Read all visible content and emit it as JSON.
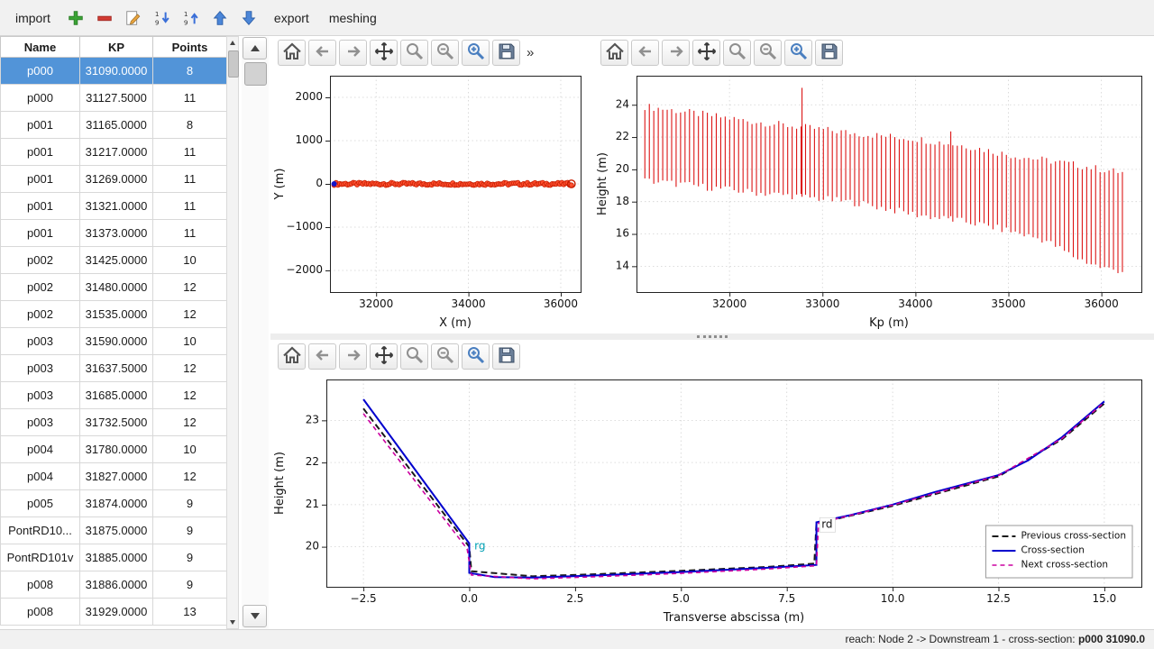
{
  "toolbar": {
    "import_label": "import",
    "export_label": "export",
    "meshing_label": "meshing",
    "icons": [
      "add",
      "remove",
      "edit",
      "sort-descending",
      "sort-ascending",
      "move-up",
      "move-down"
    ]
  },
  "table": {
    "columns": [
      "Name",
      "KP",
      "Points"
    ],
    "selected_row": 0,
    "rows": [
      [
        "p000",
        "31090.0000",
        "8"
      ],
      [
        "p000",
        "31127.5000",
        "11"
      ],
      [
        "p001",
        "31165.0000",
        "8"
      ],
      [
        "p001",
        "31217.0000",
        "11"
      ],
      [
        "p001",
        "31269.0000",
        "11"
      ],
      [
        "p001",
        "31321.0000",
        "11"
      ],
      [
        "p001",
        "31373.0000",
        "11"
      ],
      [
        "p002",
        "31425.0000",
        "10"
      ],
      [
        "p002",
        "31480.0000",
        "12"
      ],
      [
        "p002",
        "31535.0000",
        "12"
      ],
      [
        "p003",
        "31590.0000",
        "10"
      ],
      [
        "p003",
        "31637.5000",
        "12"
      ],
      [
        "p003",
        "31685.0000",
        "12"
      ],
      [
        "p003",
        "31732.5000",
        "12"
      ],
      [
        "p004",
        "31780.0000",
        "10"
      ],
      [
        "p004",
        "31827.0000",
        "12"
      ],
      [
        "p005",
        "31874.0000",
        "9"
      ],
      [
        "PontRD10...",
        "31875.0000",
        "9"
      ],
      [
        "PontRD101v",
        "31885.0000",
        "9"
      ],
      [
        "p008",
        "31886.0000",
        "9"
      ],
      [
        "p008",
        "31929.0000",
        "13"
      ]
    ]
  },
  "plot_toolbars": {
    "buttons": [
      "home",
      "back",
      "forward",
      "pan",
      "zoom",
      "zoom-out",
      "zoom-in",
      "save"
    ],
    "overflow": "»"
  },
  "statusbar": {
    "reach_text": "reach: Node 2 -> Downstream 1 - cross-section: ",
    "cross_section": "p000 31090.0"
  },
  "chart_data": [
    {
      "id": "chart1",
      "type": "scatter",
      "title": "",
      "xlabel": "X (m)",
      "ylabel": "Y (m)",
      "xlim": [
        31000,
        36430
      ],
      "ylim": [
        -2500,
        2500
      ],
      "xticks": [
        32000,
        34000,
        36000
      ],
      "xtick_labels": [
        "32000",
        "34000",
        "36000"
      ],
      "yticks": [
        -2000,
        -1000,
        0,
        1000,
        2000
      ],
      "ytick_labels": [
        "−2000",
        "−1000",
        "0",
        "1000",
        "2000"
      ],
      "grid": true,
      "scatter": {
        "x_start": 31090,
        "x_end": 36230,
        "count": 125,
        "y": 0,
        "spread": 60,
        "color": "#ff5030",
        "edge": "#c81e00"
      },
      "start_marker": {
        "x": 31090,
        "y": 0,
        "color": "#1414c8"
      },
      "end_marker": {
        "x": 36230,
        "y": 0,
        "color": "#c81e00"
      }
    },
    {
      "id": "chart2",
      "type": "vlines",
      "title": "",
      "xlabel": "Kp (m)",
      "ylabel": "Height (m)",
      "xlim": [
        31000,
        36430
      ],
      "ylim": [
        12.4,
        25.8
      ],
      "xticks": [
        32000,
        33000,
        34000,
        35000,
        36000
      ],
      "xtick_labels": [
        "32000",
        "33000",
        "34000",
        "35000",
        "36000"
      ],
      "yticks": [
        14,
        16,
        18,
        20,
        22,
        24
      ],
      "ytick_labels": [
        "14",
        "16",
        "18",
        "20",
        "22",
        "24"
      ],
      "grid": true,
      "vlines": {
        "color": "#dc1414",
        "kp_start": 31090,
        "kp_end": 36230,
        "spacing": 48,
        "jitter": 0.45,
        "top_anchors": [
          [
            31090,
            23.9
          ],
          [
            31600,
            23.5
          ],
          [
            32200,
            23.0
          ],
          [
            32800,
            22.6
          ],
          [
            33400,
            22.2
          ],
          [
            34000,
            21.9
          ],
          [
            34600,
            21.4
          ],
          [
            35000,
            20.9
          ],
          [
            35600,
            20.4
          ],
          [
            36000,
            20.0
          ],
          [
            36230,
            19.8
          ]
        ],
        "bottom_anchors": [
          [
            31090,
            19.3
          ],
          [
            31600,
            19.0
          ],
          [
            32200,
            18.6
          ],
          [
            32800,
            18.3
          ],
          [
            33400,
            17.9
          ],
          [
            34000,
            17.2
          ],
          [
            34600,
            16.7
          ],
          [
            35000,
            16.2
          ],
          [
            35400,
            15.6
          ],
          [
            35700,
            14.6
          ],
          [
            36000,
            13.9
          ],
          [
            36230,
            13.7
          ]
        ],
        "spikes": [
          [
            32780,
            25.05,
            18.3
          ],
          [
            34380,
            22.35,
            17.1
          ]
        ]
      }
    },
    {
      "id": "chart3",
      "type": "lines",
      "title": "",
      "xlabel": "Transverse abscissa (m)",
      "ylabel": "Height (m)",
      "xlim": [
        -3.375,
        15.875
      ],
      "ylim": [
        19.05,
        23.97
      ],
      "xticks": [
        -2.5,
        0,
        2.5,
        5,
        7.5,
        10,
        12.5,
        15
      ],
      "xtick_labels": [
        "−2.5",
        "0.0",
        "2.5",
        "5.0",
        "7.5",
        "10.0",
        "12.5",
        "15.0"
      ],
      "yticks": [
        20,
        21,
        22,
        23
      ],
      "ytick_labels": [
        "20",
        "21",
        "22",
        "23"
      ],
      "grid": true,
      "legend": true,
      "legend_position": "bottom-right",
      "series": [
        {
          "name": "Previous cross-section",
          "color": "#1a1a1a",
          "dash": [
            7,
            4
          ],
          "width": 2,
          "points": [
            [
              -2.5,
              23.28
            ],
            [
              0,
              20.0
            ],
            [
              0.05,
              19.42
            ],
            [
              1.5,
              19.3
            ],
            [
              3,
              19.35
            ],
            [
              5,
              19.43
            ],
            [
              7,
              19.52
            ],
            [
              8.15,
              19.6
            ],
            [
              8.2,
              20.55
            ],
            [
              10,
              20.97
            ],
            [
              12.5,
              21.67
            ],
            [
              14,
              22.55
            ],
            [
              15,
              23.4
            ]
          ]
        },
        {
          "name": "Cross-section",
          "color": "#0000cd",
          "dash": null,
          "width": 2,
          "points": [
            [
              -2.5,
              23.5
            ],
            [
              0,
              20.08
            ],
            [
              0,
              19.38
            ],
            [
              0.6,
              19.28
            ],
            [
              1.5,
              19.27
            ],
            [
              3,
              19.32
            ],
            [
              5,
              19.4
            ],
            [
              7,
              19.5
            ],
            [
              8.2,
              19.57
            ],
            [
              8.2,
              20.58
            ],
            [
              9,
              20.75
            ],
            [
              10,
              21.0
            ],
            [
              11,
              21.3
            ],
            [
              12.5,
              21.7
            ],
            [
              13.2,
              22.05
            ],
            [
              14,
              22.6
            ],
            [
              15,
              23.45
            ]
          ]
        },
        {
          "name": "Next cross-section",
          "color": "#cc00a0",
          "dash": [
            5,
            4
          ],
          "width": 1.6,
          "points": [
            [
              -2.5,
              23.16
            ],
            [
              -0.05,
              19.95
            ],
            [
              0.05,
              19.33
            ],
            [
              1.5,
              19.24
            ],
            [
              3,
              19.29
            ],
            [
              5,
              19.37
            ],
            [
              7,
              19.47
            ],
            [
              8.2,
              19.55
            ],
            [
              8.25,
              20.56
            ],
            [
              10,
              20.99
            ],
            [
              12.5,
              21.69
            ],
            [
              14,
              22.57
            ],
            [
              15,
              23.43
            ]
          ]
        }
      ],
      "annotations": [
        {
          "text": "rg",
          "x": 0.12,
          "y": 20.0,
          "color": "#00a0b4"
        },
        {
          "text": "rd",
          "x": 8.32,
          "y": 20.52,
          "color": "#111111",
          "bg": "#ffffff"
        }
      ]
    }
  ]
}
